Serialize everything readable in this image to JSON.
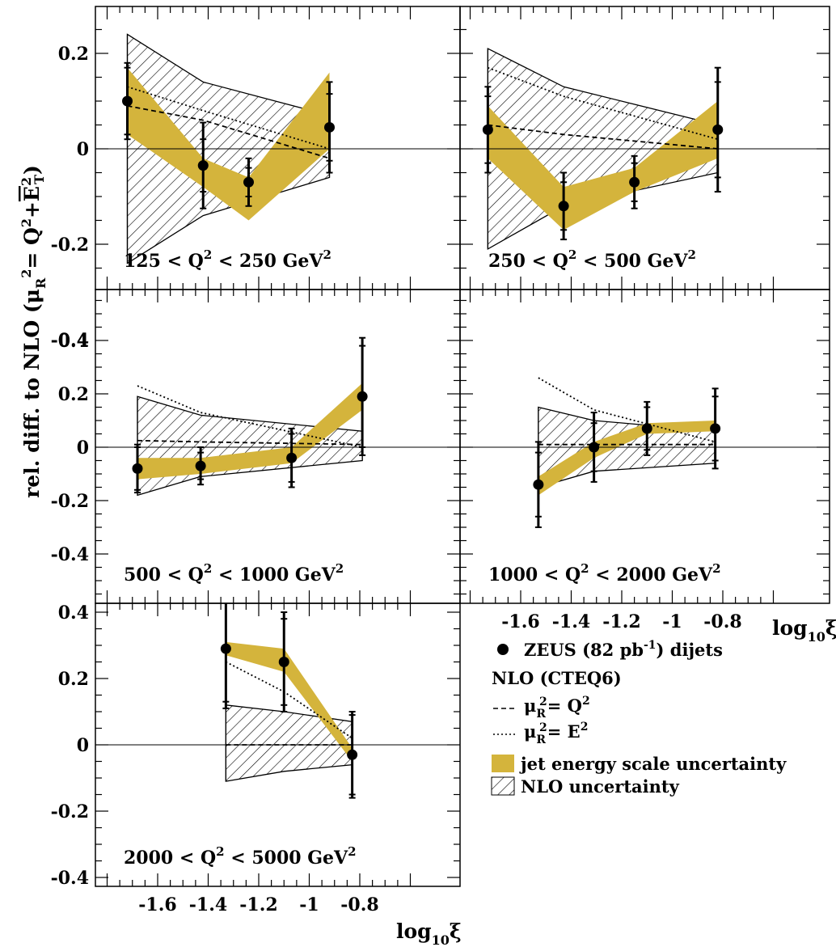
{
  "figure": {
    "ylabel_main": "rel. diff. to NLO (",
    "ylabel_formula": "μ",
    "ylabel_sub_R": "R",
    "ylabel_sup_2": "2",
    "ylabel_eq": "= Q",
    "ylabel_plus": "+",
    "ylabel_E": "E",
    "ylabel_sub_T": "T",
    "ylabel_close": ")",
    "xlabel_log": "log",
    "xlabel_sub": "10",
    "xlabel_xi": "ξ"
  },
  "colors": {
    "jes_band": "#d4b43c",
    "frame": "#000000",
    "background": "#ffffff"
  },
  "legend": {
    "data": "ZEUS (82 pb",
    "data_sup": "-1",
    "data_tail": ") dijets",
    "nlo_header": "NLO (CTEQ6)",
    "mu_q2_lhs": "μ",
    "mu_q2_rhs": "= Q",
    "mu_et_lhs": "μ",
    "mu_et_rhs": "= E",
    "jes": "jet energy scale uncertainty",
    "nlo_unc": "NLO uncertainty"
  },
  "chart_data": {
    "type": "scatter",
    "xlabel": "log10 ξ",
    "ylabel": "rel. diff. to NLO (μR² = Q² + ĒT²)",
    "xlim": [
      -1.8,
      -0.65
    ],
    "ylim": [
      -0.58,
      0.58
    ],
    "x_ticks": [
      -1.6,
      -1.4,
      -1.2,
      -1.0,
      -0.8
    ],
    "x_tick_labels": [
      "-1.6",
      "-1.4",
      "-1.2",
      "-1",
      "-0.8"
    ],
    "y_ticks": [
      -0.4,
      -0.2,
      0.0,
      0.2,
      0.4
    ],
    "y_tick_labels": [
      "-0.4",
      "-0.2",
      "0",
      "0.2",
      "0.4"
    ],
    "panels": [
      {
        "q2_prefix": "125 < Q",
        "q2_suffix": " < 250 GeV",
        "x": [
          -1.72,
          -1.42,
          -1.24,
          -0.92
        ],
        "y": [
          0.1,
          -0.035,
          -0.07,
          0.045
        ],
        "stat_err": [
          0.07,
          0.055,
          0.03,
          0.07
        ],
        "tot_err": [
          0.08,
          0.09,
          0.05,
          0.095
        ],
        "jes_lo": [
          0.03,
          -0.08,
          -0.15,
          0.0
        ],
        "jes_hi": [
          0.17,
          -0.02,
          -0.06,
          0.16
        ],
        "nlo_x": [
          -1.72,
          -1.42,
          -0.92
        ],
        "nlo_hi": [
          0.24,
          0.14,
          0.07
        ],
        "nlo_lo": [
          -0.24,
          -0.14,
          -0.06
        ],
        "mu_q2": [
          0.09,
          0.06,
          -0.02
        ],
        "mu_et": [
          0.13,
          0.08,
          0.0
        ]
      },
      {
        "q2_prefix": "250 < Q",
        "q2_suffix": " < 500 GeV",
        "x": [
          -1.73,
          -1.43,
          -1.15,
          -0.82
        ],
        "y": [
          0.04,
          -0.12,
          -0.07,
          0.04
        ],
        "stat_err": [
          0.07,
          0.05,
          0.04,
          0.1
        ],
        "tot_err": [
          0.09,
          0.07,
          0.055,
          0.13
        ],
        "jes_lo": [
          -0.02,
          -0.17,
          -0.09,
          -0.02
        ],
        "jes_hi": [
          0.09,
          -0.08,
          -0.04,
          0.1
        ],
        "nlo_x": [
          -1.73,
          -1.43,
          -0.82
        ],
        "nlo_hi": [
          0.21,
          0.13,
          0.05
        ],
        "nlo_lo": [
          -0.21,
          -0.12,
          -0.05
        ],
        "mu_q2": [
          0.05,
          0.03,
          0.0
        ],
        "mu_et": [
          0.17,
          0.11,
          0.02
        ]
      },
      {
        "q2_prefix": "500 < Q",
        "q2_suffix": " < 1000 GeV",
        "x": [
          -1.68,
          -1.43,
          -1.07,
          -0.79
        ],
        "y": [
          -0.08,
          -0.07,
          -0.04,
          0.19
        ],
        "stat_err": [
          0.08,
          0.05,
          0.09,
          0.19
        ],
        "tot_err": [
          0.09,
          0.07,
          0.11,
          0.22
        ],
        "jes_lo": [
          -0.12,
          -0.1,
          -0.06,
          0.14
        ],
        "jes_hi": [
          -0.04,
          -0.04,
          0.0,
          0.24
        ],
        "nlo_x": [
          -1.68,
          -1.43,
          -0.79
        ],
        "nlo_hi": [
          0.19,
          0.12,
          0.06
        ],
        "nlo_lo": [
          -0.18,
          -0.11,
          -0.05
        ],
        "mu_q2": [
          0.025,
          0.02,
          0.01
        ],
        "mu_et": [
          0.23,
          0.13,
          0.0
        ]
      },
      {
        "q2_prefix": "1000 < Q",
        "q2_suffix": " < 2000 GeV",
        "x": [
          -1.53,
          -1.31,
          -1.1,
          -0.83
        ],
        "y": [
          -0.14,
          0.0,
          0.07,
          0.07
        ],
        "stat_err": [
          0.12,
          0.09,
          0.08,
          0.12
        ],
        "tot_err": [
          0.16,
          0.13,
          0.1,
          0.15
        ],
        "jes_lo": [
          -0.18,
          -0.04,
          0.05,
          0.06
        ],
        "jes_hi": [
          -0.11,
          0.02,
          0.09,
          0.1
        ],
        "nlo_x": [
          -1.53,
          -1.31,
          -0.83
        ],
        "nlo_hi": [
          0.15,
          0.1,
          0.06
        ],
        "nlo_lo": [
          -0.15,
          -0.09,
          -0.06
        ],
        "mu_q2": [
          0.01,
          0.01,
          0.01
        ],
        "mu_et": [
          0.26,
          0.14,
          0.02
        ]
      },
      {
        "q2_prefix": "2000 < Q",
        "q2_suffix": " < 5000 GeV",
        "x": [
          -1.33,
          -1.1,
          -0.83
        ],
        "y": [
          0.29,
          0.25,
          -0.03
        ],
        "stat_err": [
          0.16,
          0.13,
          0.12
        ],
        "tot_err": [
          0.18,
          0.15,
          0.13
        ],
        "jes_lo": [
          0.27,
          0.22,
          -0.05
        ],
        "jes_hi": [
          0.31,
          0.29,
          -0.01
        ],
        "nlo_x": [
          -1.33,
          -1.1,
          -0.83
        ],
        "nlo_hi": [
          0.12,
          0.1,
          0.07
        ],
        "nlo_lo": [
          -0.11,
          -0.08,
          -0.06
        ],
        "mu_q2": [
          0.0,
          0.0,
          0.0
        ],
        "mu_et": [
          0.25,
          0.16,
          0.02
        ]
      }
    ]
  }
}
